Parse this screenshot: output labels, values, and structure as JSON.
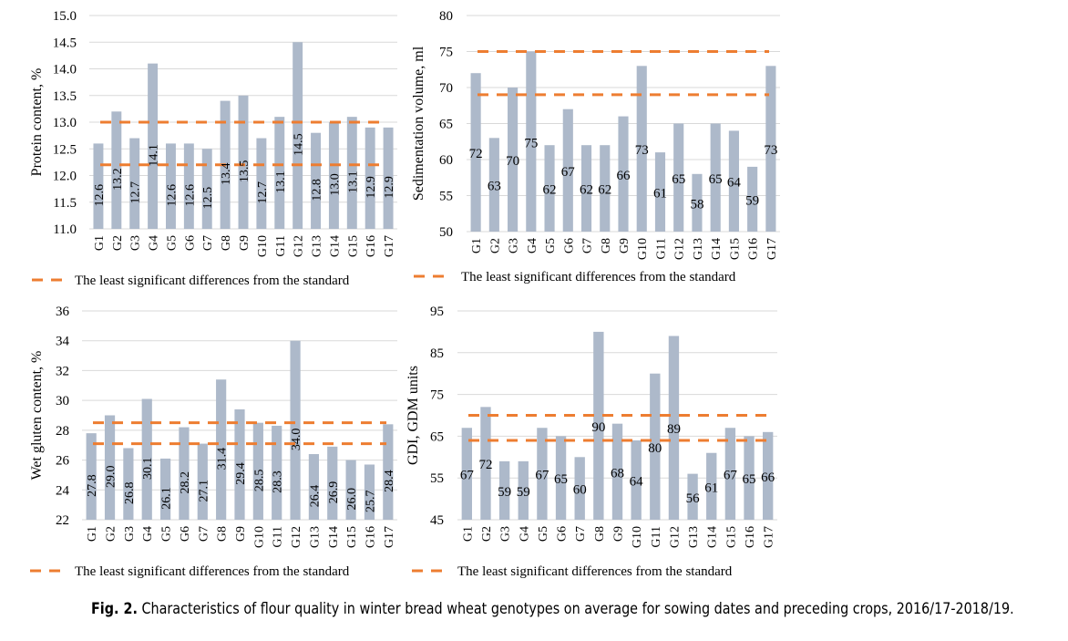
{
  "chart_data": [
    {
      "type": "bar",
      "id": "protein",
      "ylabel": "Protein content, %",
      "categories": [
        "G1",
        "G2",
        "G3",
        "G4",
        "G5",
        "G6",
        "G7",
        "G8",
        "G9",
        "G10",
        "G11",
        "G12",
        "G13",
        "G14",
        "G15",
        "G16",
        "G17"
      ],
      "values": [
        12.6,
        13.2,
        12.7,
        14.1,
        12.6,
        12.6,
        12.5,
        13.4,
        13.5,
        12.7,
        13.1,
        14.5,
        12.8,
        13.0,
        13.1,
        12.9,
        12.9
      ],
      "labels": [
        "12.6",
        "13.2",
        "12.7",
        "14.1",
        "12.6",
        "12.6",
        "12.5",
        "13.4",
        "13.5",
        "12.7",
        "13.1",
        "14.5",
        "12.8",
        "13.0",
        "13.1",
        "12.9",
        "12.9"
      ],
      "label_style": "rotated",
      "ylim": [
        11.0,
        15.0
      ],
      "yticks": [
        "11.0",
        "11.5",
        "12.0",
        "12.5",
        "13.0",
        "13.5",
        "14.0",
        "14.5",
        "15.0"
      ],
      "ytick_values": [
        11.0,
        11.5,
        12.0,
        12.5,
        13.0,
        13.5,
        14.0,
        14.5,
        15.0
      ],
      "lsd_lines": [
        13.0,
        12.2
      ],
      "legend": "The least significant differences from the standard",
      "grid": true
    },
    {
      "type": "bar",
      "id": "sedimentation",
      "ylabel": "Sedimentation volume, ml",
      "categories": [
        "G1",
        "G2",
        "G3",
        "G4",
        "G5",
        "G6",
        "G7",
        "G8",
        "G9",
        "G10",
        "G11",
        "G12",
        "G13",
        "G14",
        "G15",
        "G16",
        "G17"
      ],
      "values": [
        72,
        63,
        70,
        75,
        62,
        67,
        62,
        62,
        66,
        73,
        61,
        65,
        58,
        65,
        64,
        59,
        73
      ],
      "labels": [
        "72",
        "63",
        "70",
        "75",
        "62",
        "67",
        "62",
        "62",
        "66",
        "73",
        "61",
        "65",
        "58",
        "65",
        "64",
        "59",
        "73"
      ],
      "label_style": "horizontal",
      "ylim": [
        50,
        80
      ],
      "yticks": [
        "50",
        "55",
        "60",
        "65",
        "70",
        "75",
        "80"
      ],
      "ytick_values": [
        50,
        55,
        60,
        65,
        70,
        75,
        80
      ],
      "lsd_lines": [
        75,
        69
      ],
      "legend": "The least significant differences from the standard",
      "grid": true
    },
    {
      "type": "bar",
      "id": "gluten",
      "ylabel": "Wet gluten content, %",
      "categories": [
        "G1",
        "G2",
        "G3",
        "G4",
        "G5",
        "G6",
        "G7",
        "G8",
        "G9",
        "G10",
        "G11",
        "G12",
        "G13",
        "G14",
        "G15",
        "G16",
        "G17"
      ],
      "values": [
        27.8,
        29.0,
        26.8,
        30.1,
        26.1,
        28.2,
        27.1,
        31.4,
        29.4,
        28.5,
        28.3,
        34.0,
        26.4,
        26.9,
        26.0,
        25.7,
        28.4
      ],
      "labels": [
        "27.8",
        "29.0",
        "26.8",
        "30.1",
        "26.1",
        "28.2",
        "27.1",
        "31.4",
        "29.4",
        "28.5",
        "28.3",
        "34.0",
        "26.4",
        "26.9",
        "26.0",
        "25.7",
        "28.4"
      ],
      "label_style": "rotated",
      "ylim": [
        22,
        36
      ],
      "yticks": [
        "22",
        "24",
        "26",
        "28",
        "30",
        "32",
        "34",
        "36"
      ],
      "ytick_values": [
        22,
        24,
        26,
        28,
        30,
        32,
        34,
        36
      ],
      "lsd_lines": [
        28.5,
        27.1
      ],
      "legend": "The least significant differences from the standard",
      "grid": true
    },
    {
      "type": "bar",
      "id": "gdi",
      "ylabel": "GDI, GDM units",
      "categories": [
        "G1",
        "G2",
        "G3",
        "G4",
        "G5",
        "G6",
        "G7",
        "G8",
        "G9",
        "G10",
        "G11",
        "G12",
        "G13",
        "G14",
        "G15",
        "G16",
        "G17"
      ],
      "values": [
        67,
        72,
        59,
        59,
        67,
        65,
        60,
        90,
        68,
        64,
        80,
        89,
        56,
        61,
        67,
        65,
        66
      ],
      "labels": [
        "67",
        "72",
        "59",
        "59",
        "67",
        "65",
        "60",
        "90",
        "68",
        "64",
        "80",
        "89",
        "56",
        "61",
        "67",
        "65",
        "66"
      ],
      "label_style": "horizontal",
      "ylim": [
        45,
        95
      ],
      "yticks": [
        "45",
        "55",
        "65",
        "75",
        "85",
        "95"
      ],
      "ytick_values": [
        45,
        55,
        65,
        75,
        85,
        95
      ],
      "lsd_lines": [
        70,
        64
      ],
      "legend": "The least significant differences from the standard",
      "grid": true
    }
  ],
  "colors": {
    "bar": "#adb9ca",
    "lsd": "#ed7d31",
    "grid": "#d9d9d9",
    "text": "#000000"
  },
  "caption": {
    "prefix": "Fig. 2.",
    "text": " Characteristics of flour quality in winter bread wheat genotypes on average for sowing dates and preceding crops, 2016/17-2018/19."
  }
}
